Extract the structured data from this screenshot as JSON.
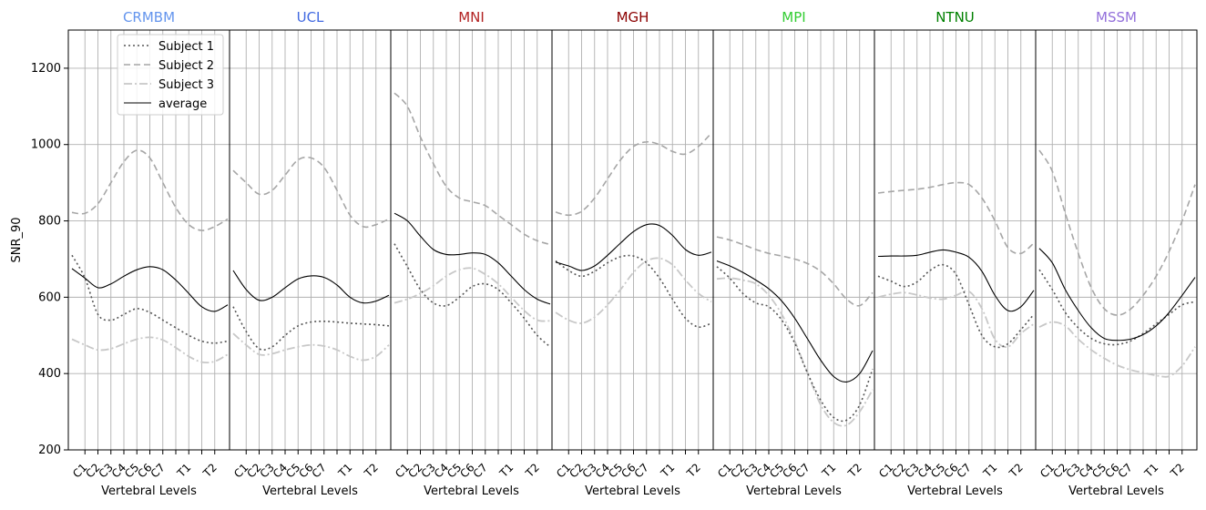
{
  "chart_data": {
    "type": "line",
    "ylabel": "SNR_90",
    "xlabel": "Vertebral Levels",
    "ylim": [
      200,
      1300
    ],
    "yticks": [
      200,
      400,
      600,
      800,
      1000,
      1200
    ],
    "categories": [
      "C1",
      "C2",
      "C3",
      "C4",
      "C5",
      "C6",
      "C7",
      "T1",
      "T2"
    ],
    "legend": {
      "placement": "top-left of first panel",
      "entries": [
        {
          "name": "Subject 1",
          "style": "dotted",
          "color": "#555555"
        },
        {
          "name": "Subject 2",
          "style": "dashed",
          "color": "#a6a6a6"
        },
        {
          "name": "Subject 3",
          "style": "dashdot",
          "color": "#c8c8c8"
        },
        {
          "name": "average",
          "style": "solid",
          "color": "#000000"
        }
      ]
    },
    "grid": true,
    "panels": [
      {
        "title": "CRMBM",
        "title_color": "#6495ed",
        "series": {
          "Subject 1": [
            710,
            650,
            555,
            540,
            555,
            570,
            560,
            540,
            520,
            500,
            485,
            480,
            485
          ],
          "Subject 2": [
            822,
            820,
            845,
            900,
            955,
            985,
            965,
            900,
            835,
            790,
            775,
            785,
            805
          ],
          "Subject 3": [
            490,
            475,
            462,
            465,
            478,
            490,
            495,
            488,
            468,
            445,
            430,
            432,
            450
          ],
          "average": [
            675,
            650,
            625,
            635,
            655,
            672,
            680,
            672,
            645,
            610,
            575,
            563,
            580
          ]
        }
      },
      {
        "title": "UCL",
        "title_color": "#4169e1",
        "series": {
          "Subject 1": [
            575,
            510,
            465,
            470,
            500,
            525,
            535,
            537,
            535,
            532,
            530,
            528,
            525
          ],
          "Subject 2": [
            932,
            900,
            870,
            880,
            920,
            960,
            965,
            940,
            880,
            815,
            785,
            790,
            805
          ],
          "Subject 3": [
            505,
            475,
            450,
            452,
            462,
            470,
            475,
            472,
            462,
            445,
            435,
            445,
            475
          ],
          "average": [
            670,
            620,
            592,
            600,
            625,
            648,
            656,
            652,
            632,
            600,
            585,
            590,
            605
          ]
        }
      },
      {
        "title": "MNI",
        "title_color": "#b22222",
        "series": {
          "Subject 1": [
            740,
            680,
            620,
            585,
            578,
            600,
            628,
            635,
            620,
            585,
            545,
            500,
            470
          ],
          "Subject 2": [
            1135,
            1100,
            1020,
            950,
            890,
            860,
            850,
            840,
            815,
            790,
            765,
            748,
            738
          ],
          "Subject 3": [
            585,
            595,
            610,
            630,
            655,
            672,
            676,
            660,
            635,
            600,
            565,
            540,
            538
          ],
          "average": [
            820,
            800,
            760,
            725,
            712,
            712,
            716,
            712,
            690,
            655,
            620,
            595,
            582
          ]
        }
      },
      {
        "title": "MGH",
        "title_color": "#8b0000",
        "series": {
          "Subject 1": [
            695,
            670,
            655,
            668,
            690,
            706,
            708,
            690,
            650,
            595,
            545,
            522,
            532
          ],
          "Subject 2": [
            823,
            815,
            825,
            860,
            910,
            960,
            995,
            1007,
            1000,
            982,
            975,
            995,
            1030
          ],
          "Subject 3": [
            560,
            540,
            532,
            548,
            580,
            620,
            665,
            695,
            702,
            685,
            645,
            610,
            588
          ],
          "average": [
            692,
            682,
            670,
            682,
            710,
            742,
            772,
            790,
            788,
            762,
            725,
            710,
            718
          ]
        }
      },
      {
        "title": "MPI",
        "title_color": "#32cd32",
        "series": {
          "Subject 1": [
            680,
            650,
            610,
            585,
            575,
            540,
            480,
            400,
            330,
            285,
            278,
            318,
            412
          ],
          "Subject 2": [
            758,
            750,
            738,
            725,
            715,
            708,
            700,
            688,
            668,
            635,
            595,
            578,
            612
          ],
          "Subject 3": [
            648,
            650,
            645,
            635,
            605,
            555,
            485,
            400,
            318,
            272,
            265,
            300,
            358
          ],
          "average": [
            695,
            682,
            665,
            645,
            622,
            590,
            545,
            490,
            435,
            392,
            378,
            400,
            460
          ]
        }
      },
      {
        "title": "NTNU",
        "title_color": "#008000",
        "series": {
          "Subject 1": [
            655,
            642,
            628,
            640,
            670,
            685,
            660,
            580,
            500,
            470,
            478,
            515,
            555
          ],
          "Subject 2": [
            873,
            877,
            880,
            883,
            888,
            895,
            900,
            895,
            860,
            800,
            730,
            715,
            742
          ],
          "Subject 3": [
            600,
            608,
            612,
            606,
            598,
            595,
            605,
            615,
            570,
            490,
            470,
            505,
            530
          ],
          "average": [
            707,
            708,
            708,
            710,
            718,
            724,
            718,
            705,
            668,
            605,
            565,
            575,
            618
          ]
        }
      },
      {
        "title": "MSSM",
        "title_color": "#9370db",
        "series": {
          "Subject 1": [
            672,
            620,
            560,
            520,
            492,
            478,
            476,
            485,
            505,
            530,
            555,
            580,
            588
          ],
          "Subject 2": [
            985,
            930,
            820,
            715,
            625,
            570,
            553,
            568,
            605,
            655,
            720,
            800,
            895
          ],
          "Subject 3": [
            522,
            535,
            525,
            490,
            462,
            440,
            422,
            410,
            402,
            395,
            393,
            420,
            470
          ],
          "average": [
            728,
            690,
            620,
            565,
            520,
            492,
            487,
            490,
            502,
            525,
            560,
            605,
            652
          ]
        }
      }
    ]
  }
}
